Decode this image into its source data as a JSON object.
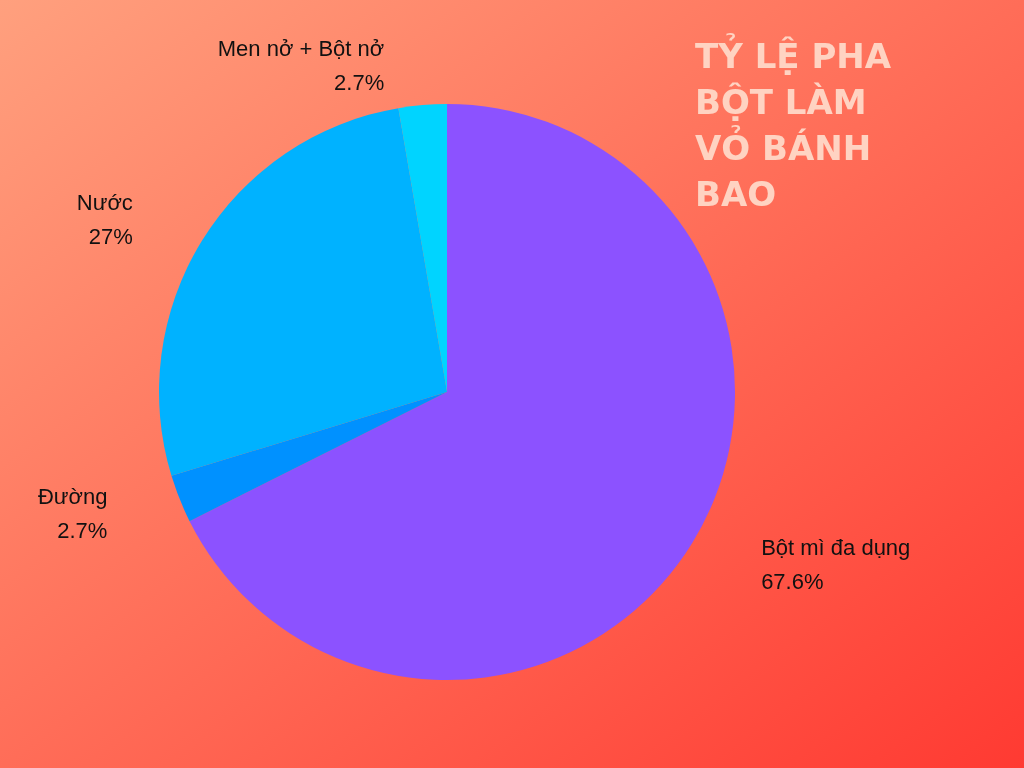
{
  "chart_data": {
    "type": "pie",
    "title": "TỶ LỆ PHA BỘT LÀM VỎ BÁNH BAO",
    "categories": [
      "Bột mì đa dụng",
      "Đường",
      "Nước",
      "Men nở + Bột nở"
    ],
    "values": [
      67.6,
      2.7,
      27,
      2.7
    ],
    "value_labels": [
      "67.6%",
      "2.7%",
      "27%",
      "2.7%"
    ],
    "colors": [
      "#8c52ff",
      "#0091ff",
      "#00b2ff",
      "#00d4ff"
    ],
    "legend": false
  }
}
